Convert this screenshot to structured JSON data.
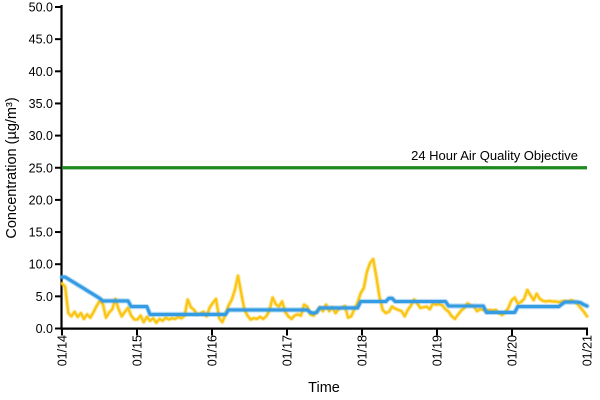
{
  "chart_data": {
    "type": "line",
    "xlabel": "Time",
    "ylabel": "Concentration (µg/m³)",
    "ylim": [
      0,
      50
    ],
    "ytick_step": 5,
    "grid": false,
    "legend": "none",
    "ytick_labels": [
      "0.0",
      "5.0",
      "10.0",
      "15.0",
      "20.0",
      "25.0",
      "30.0",
      "35.0",
      "40.0",
      "45.0",
      "50.0"
    ],
    "x_categories": [
      "01/14",
      "01/15",
      "01/16",
      "01/17",
      "01/18",
      "01/19",
      "01/20",
      "01/21"
    ],
    "x_unit": "hours, 24 per day tick",
    "objective": {
      "label": "24 Hour Air Quality Objective",
      "value": 25.0,
      "color": "#1E8A1E"
    },
    "series": [
      {
        "id": "series-yellow",
        "color": "#FAC513",
        "values": [
          7.0,
          6.5,
          2.4,
          1.9,
          2.6,
          1.8,
          2.4,
          1.5,
          2.2,
          1.7,
          2.5,
          3.5,
          4.3,
          3.8,
          1.7,
          2.5,
          3.0,
          4.6,
          3.0,
          1.9,
          2.6,
          3.2,
          2.0,
          1.4,
          1.4,
          2.0,
          1.0,
          1.8,
          1.2,
          1.6,
          0.9,
          1.5,
          1.2,
          1.7,
          1.4,
          1.6,
          1.5,
          1.8,
          1.6,
          2.0,
          4.5,
          3.3,
          2.9,
          2.2,
          2.3,
          2.6,
          1.9,
          3.3,
          4.0,
          4.6,
          1.6,
          1.0,
          2.2,
          3.6,
          4.5,
          6.0,
          8.2,
          5.5,
          3.0,
          2.0,
          1.4,
          1.6,
          1.5,
          1.8,
          1.5,
          1.9,
          2.8,
          4.8,
          3.8,
          3.4,
          4.2,
          2.6,
          1.9,
          1.5,
          2.0,
          2.2,
          2.0,
          3.7,
          3.4,
          2.2,
          2.0,
          2.6,
          3.3,
          2.7,
          3.7,
          2.7,
          3.3,
          2.4,
          3.0,
          3.2,
          3.5,
          1.7,
          1.9,
          3.0,
          4.0,
          5.5,
          6.3,
          8.8,
          10.2,
          10.8,
          8.0,
          4.9,
          2.9,
          2.4,
          2.6,
          3.4,
          3.1,
          2.9,
          2.7,
          1.9,
          2.9,
          3.6,
          4.5,
          3.9,
          3.2,
          3.3,
          3.4,
          3.0,
          3.9,
          3.7,
          3.8,
          3.6,
          3.0,
          2.6,
          1.9,
          1.5,
          2.2,
          2.8,
          3.2,
          3.9,
          3.6,
          3.5,
          2.7,
          3.0,
          2.9,
          2.8,
          2.9,
          2.8,
          2.9,
          2.4,
          2.1,
          2.5,
          3.2,
          4.4,
          4.8,
          3.9,
          4.1,
          4.6,
          6.0,
          5.2,
          4.4,
          5.4,
          4.6,
          4.3,
          4.2,
          4.3,
          4.2,
          4.2,
          4.1,
          4.2,
          4.3,
          4.2,
          4.4,
          4.2,
          3.8,
          3.2,
          2.6,
          1.9
        ]
      },
      {
        "id": "series-blue",
        "color": "#359CE4",
        "values": [
          8.0,
          8.0,
          7.7,
          7.4,
          7.1,
          6.8,
          6.5,
          6.2,
          5.9,
          5.6,
          5.3,
          5.0,
          4.7,
          4.3,
          4.3,
          4.3,
          4.3,
          4.3,
          4.3,
          4.3,
          4.3,
          4.3,
          3.4,
          3.4,
          3.4,
          3.4,
          3.4,
          3.4,
          2.2,
          2.2,
          2.2,
          2.2,
          2.2,
          2.2,
          2.2,
          2.2,
          2.2,
          2.2,
          2.2,
          2.2,
          2.2,
          2.2,
          2.2,
          2.2,
          2.2,
          2.2,
          2.2,
          2.2,
          2.2,
          2.2,
          2.2,
          2.2,
          2.2,
          2.9,
          2.9,
          2.9,
          2.9,
          2.9,
          2.9,
          2.9,
          2.9,
          2.9,
          2.9,
          2.9,
          2.9,
          2.9,
          2.9,
          2.9,
          2.9,
          2.9,
          2.9,
          2.9,
          2.9,
          2.9,
          2.9,
          2.9,
          2.9,
          2.9,
          2.9,
          2.5,
          2.4,
          2.5,
          3.2,
          3.2,
          3.2,
          3.2,
          3.2,
          3.2,
          3.2,
          3.2,
          3.2,
          3.2,
          3.2,
          3.2,
          3.2,
          4.2,
          4.2,
          4.2,
          4.2,
          4.2,
          4.2,
          4.2,
          4.2,
          4.2,
          4.7,
          4.7,
          4.2,
          4.2,
          4.2,
          4.2,
          4.2,
          4.2,
          4.2,
          4.2,
          4.2,
          4.2,
          4.2,
          4.2,
          4.2,
          4.2,
          4.2,
          4.2,
          4.2,
          3.5,
          3.5,
          3.5,
          3.5,
          3.5,
          3.5,
          3.5,
          3.5,
          3.5,
          3.5,
          3.5,
          3.5,
          2.5,
          2.5,
          2.5,
          2.5,
          2.5,
          2.5,
          2.5,
          2.5,
          2.5,
          2.5,
          3.4,
          3.4,
          3.4,
          3.4,
          3.4,
          3.4,
          3.4,
          3.4,
          3.4,
          3.4,
          3.4,
          3.4,
          3.4,
          3.4,
          3.8,
          4.1,
          4.1,
          4.1,
          4.1,
          4.1,
          4.0,
          3.7,
          3.5
        ]
      }
    ]
  }
}
